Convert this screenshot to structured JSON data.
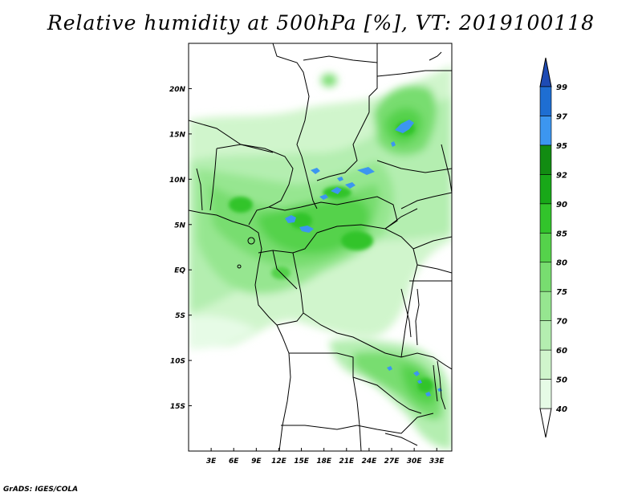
{
  "title": "Relative humidity at 500hPa [%], VT: 2019100118",
  "credit": "GrADS: IGES/COLA",
  "map": {
    "lon_range": [
      0,
      35
    ],
    "lat_range": [
      -20,
      25
    ],
    "lon_ticks": [
      "3E",
      "6E",
      "9E",
      "12E",
      "15E",
      "18E",
      "21E",
      "24E",
      "27E",
      "30E",
      "33E"
    ],
    "lat_ticks": [
      "20N",
      "15N",
      "10N",
      "5N",
      "EQ",
      "5S",
      "10S",
      "15S"
    ]
  },
  "colorbar": {
    "levels": [
      "40",
      "50",
      "60",
      "70",
      "75",
      "80",
      "85",
      "90",
      "92",
      "95",
      "97",
      "99"
    ],
    "colors": [
      "#ffffff",
      "#e6fbe6",
      "#d0f5cc",
      "#b4eeb0",
      "#96e690",
      "#78dd70",
      "#55d24b",
      "#32c42b",
      "#18a818",
      "#128c12",
      "#3c96f0",
      "#1e6ed2",
      "#1e4bb4"
    ]
  }
}
